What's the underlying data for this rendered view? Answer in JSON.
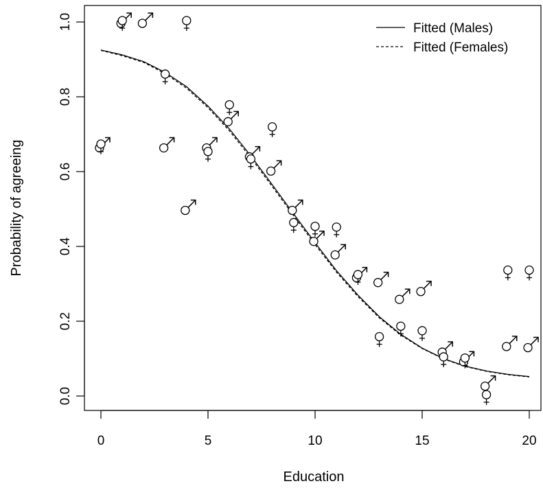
{
  "chart_data": {
    "type": "scatter",
    "xlabel": "Education",
    "ylabel": "Probability of agreeing",
    "xlim": [
      0,
      20
    ],
    "ylim": [
      0,
      1.0
    ],
    "x_ticks": [
      0,
      5,
      10,
      15,
      20
    ],
    "x_tick_labels": [
      "0",
      "5",
      "10",
      "15",
      "20"
    ],
    "y_ticks": [
      0.0,
      0.2,
      0.4,
      0.6,
      0.8,
      1.0
    ],
    "y_tick_labels": [
      "0.0",
      "0.2",
      "0.4",
      "0.6",
      "0.8",
      "1.0"
    ],
    "grid": false,
    "legend_position": "top-right",
    "legend": [
      {
        "label": "Fitted (Males)",
        "linestyle": "solid"
      },
      {
        "label": "Fitted (Females)",
        "linestyle": "dashed"
      }
    ],
    "series": [
      {
        "name": "Males",
        "marker": "♂",
        "x": [
          0,
          1,
          2,
          3,
          4,
          5,
          6,
          7,
          8,
          9,
          10,
          11,
          12,
          13,
          14,
          15,
          16,
          17,
          18,
          19,
          20
        ],
        "y": [
          0.667,
          1.0,
          1.0,
          0.667,
          0.5,
          0.667,
          0.737,
          0.643,
          0.605,
          0.5,
          0.417,
          0.381,
          0.32,
          0.307,
          0.262,
          0.283,
          0.121,
          0.095,
          0.03,
          0.136,
          0.133
        ]
      },
      {
        "name": "Females",
        "marker": "♀",
        "x": [
          0,
          1,
          3,
          4,
          5,
          6,
          7,
          8,
          9,
          10,
          11,
          12,
          13,
          14,
          15,
          16,
          17,
          18,
          19,
          20
        ],
        "y": [
          0.67,
          1.0,
          0.857,
          1.0,
          0.65,
          0.775,
          0.63,
          0.716,
          0.46,
          0.45,
          0.448,
          0.321,
          0.155,
          0.183,
          0.171,
          0.101,
          0.098,
          0.0,
          0.333,
          0.333
        ]
      },
      {
        "name": "Fitted (Males)",
        "type": "line",
        "linestyle": "solid",
        "x": [
          0,
          1,
          2,
          3,
          4,
          5,
          6,
          7,
          8,
          9,
          10,
          11,
          12,
          13,
          14,
          15,
          16,
          17,
          18,
          19,
          20
        ],
        "y": [
          0.925,
          0.912,
          0.894,
          0.865,
          0.827,
          0.775,
          0.714,
          0.642,
          0.565,
          0.487,
          0.41,
          0.335,
          0.27,
          0.212,
          0.165,
          0.128,
          0.1,
          0.08,
          0.067,
          0.058,
          0.052
        ]
      },
      {
        "name": "Fitted (Females)",
        "type": "line",
        "linestyle": "dashed",
        "x": [
          0,
          1,
          2,
          3,
          4,
          5,
          6,
          7,
          8,
          9,
          10,
          11,
          12,
          13,
          14,
          15,
          16,
          17,
          18,
          19,
          20
        ],
        "y": [
          0.924,
          0.91,
          0.892,
          0.862,
          0.823,
          0.771,
          0.709,
          0.637,
          0.56,
          0.482,
          0.405,
          0.331,
          0.266,
          0.209,
          0.163,
          0.127,
          0.099,
          0.079,
          0.066,
          0.057,
          0.051
        ]
      }
    ]
  }
}
